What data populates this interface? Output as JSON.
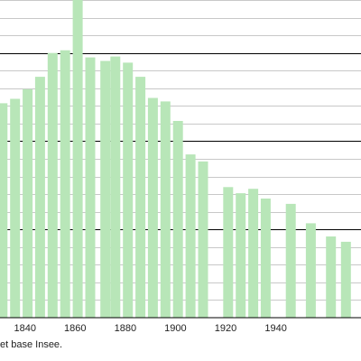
{
  "chart_data": {
    "type": "bar",
    "title": "",
    "xlabel": "",
    "ylabel": "",
    "x_ticks": [
      1840,
      1860,
      1880,
      1900,
      1920,
      1940
    ],
    "x_range": [
      1830,
      1974
    ],
    "ylim": [
      0,
      1800
    ],
    "y_major_gridlines": [
      500,
      1000,
      1500
    ],
    "y_minor_step": 100,
    "grid": true,
    "legend": "none",
    "colors": {
      "bar": "#b8e6b8",
      "major_grid": "#000000",
      "minor_grid": "#c8c8c8"
    },
    "x": [
      1831,
      1836,
      1841,
      1846,
      1851,
      1856,
      1861,
      1866,
      1872,
      1876,
      1881,
      1886,
      1891,
      1896,
      1901,
      1906,
      1911,
      1921,
      1926,
      1931,
      1936,
      1946,
      1954,
      1962,
      1968
    ],
    "values": [
      1215,
      1240,
      1295,
      1365,
      1500,
      1515,
      1845,
      1475,
      1455,
      1480,
      1445,
      1365,
      1245,
      1225,
      1115,
      925,
      885,
      740,
      705,
      730,
      675,
      645,
      535,
      460,
      430
    ]
  },
  "source_text": "et base Insee."
}
